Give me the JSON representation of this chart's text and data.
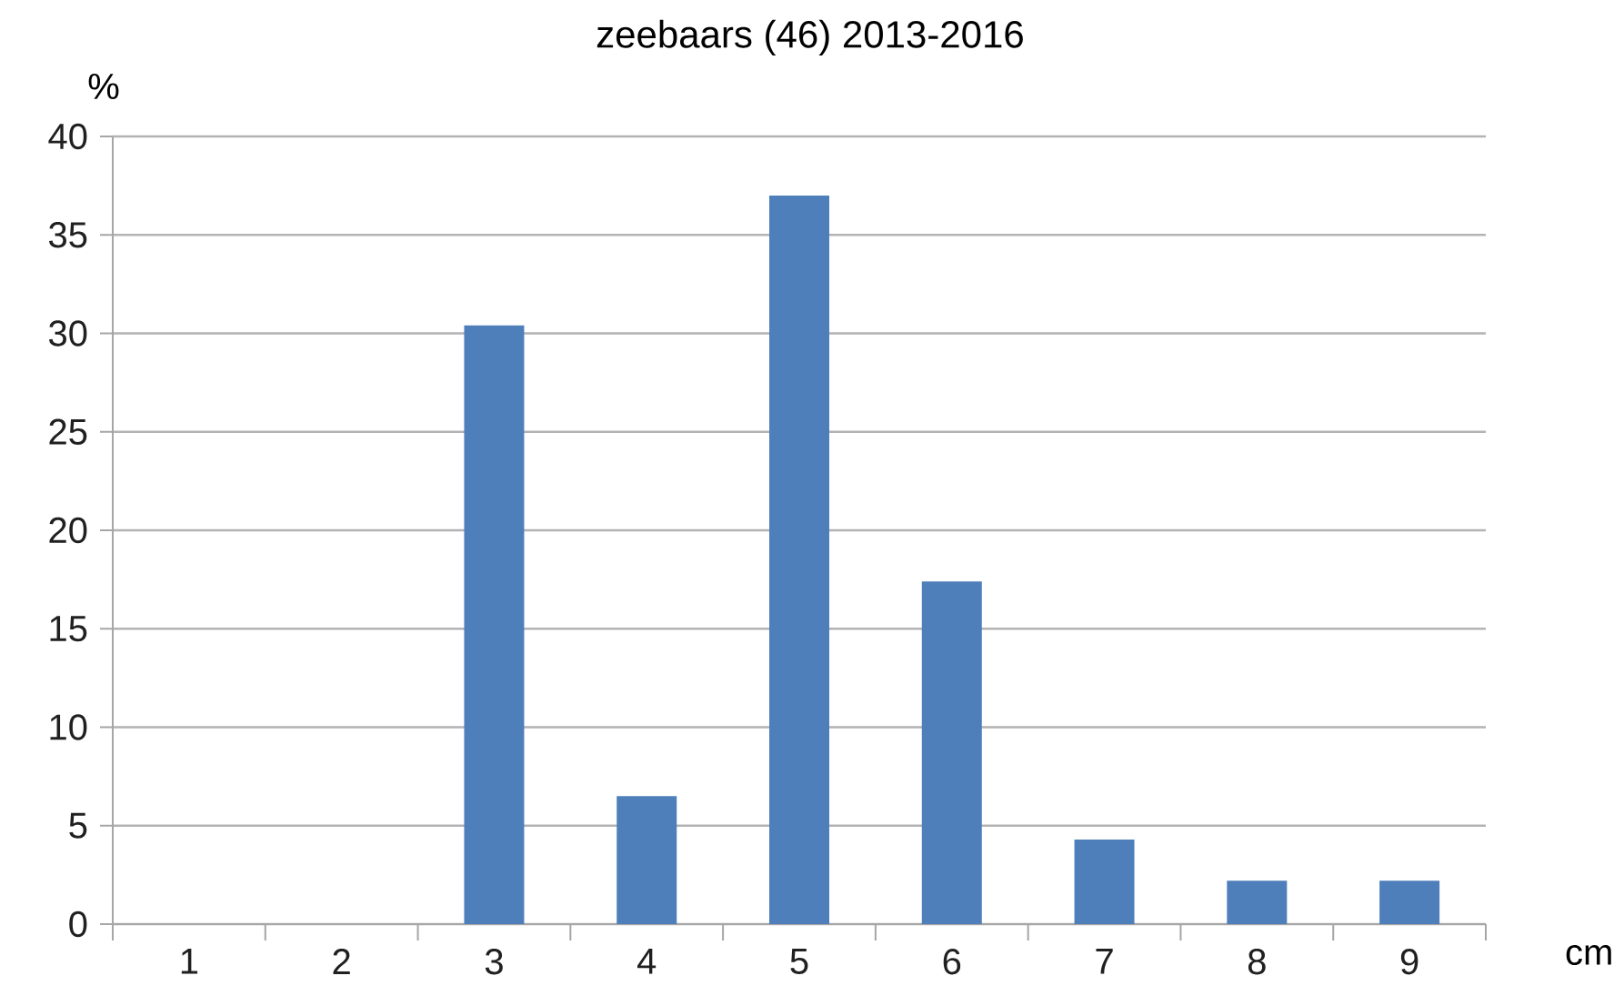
{
  "chart_data": {
    "type": "bar",
    "title": "zeebaars (46) 2013-2016",
    "ylabel": "%",
    "xlabel": "cm",
    "categories": [
      "1",
      "2",
      "3",
      "4",
      "5",
      "6",
      "7",
      "8",
      "9"
    ],
    "values": [
      0,
      0,
      30.4,
      6.5,
      37.0,
      17.4,
      4.3,
      2.2,
      2.2
    ],
    "color": "#4f7fba",
    "ylim": [
      0,
      40
    ],
    "yticks": [
      0,
      5,
      10,
      15,
      20,
      25,
      30,
      35,
      40
    ],
    "grid": "y"
  }
}
